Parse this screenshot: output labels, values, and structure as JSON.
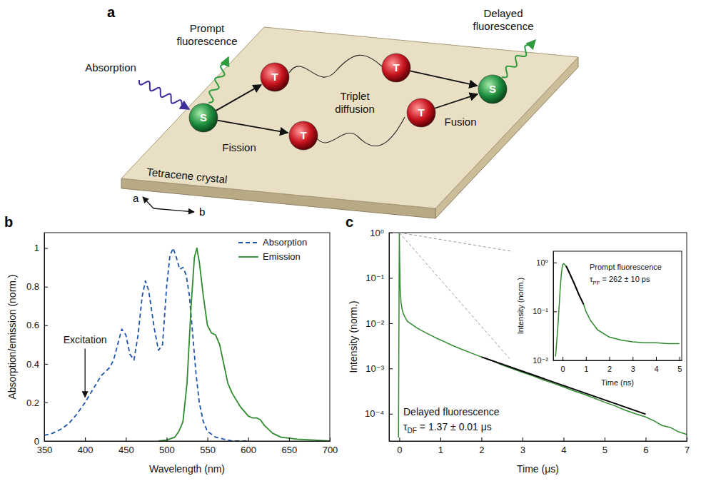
{
  "diagram": {
    "letter": "a",
    "crystal": "Tetracene crystal",
    "axes": [
      "a",
      "b"
    ],
    "nodes": [
      {
        "label": "S"
      },
      {
        "label": "T"
      },
      {
        "label": "T"
      },
      {
        "label": "T"
      },
      {
        "label": "T"
      },
      {
        "label": "S"
      }
    ],
    "labels": {
      "absorption": "Absorption",
      "prompt": "Prompt fluorescence",
      "fission": "Fission",
      "diffusion": "Triplet diffusion",
      "fusion": "Fusion",
      "delayed": "Delayed fluorescence"
    }
  },
  "chart_data": [
    {
      "type": "line",
      "letter": "b",
      "xlabel": "Wavelength (nm)",
      "ylabel": "Absorption/emission (norm.)",
      "xlim": [
        350,
        700
      ],
      "xticks": [
        350,
        400,
        450,
        500,
        550,
        600,
        650,
        700
      ],
      "ylim": [
        0,
        1.08
      ],
      "yticks": [
        0,
        0.2,
        0.4,
        0.6,
        0.8,
        1
      ],
      "legend": "upper right",
      "series": [
        {
          "name": "Absorption",
          "color": "#1f55a8",
          "line_style": "dashed",
          "x": [
            350,
            360,
            370,
            380,
            390,
            400,
            410,
            420,
            430,
            435,
            440,
            445,
            450,
            455,
            460,
            465,
            470,
            474,
            478,
            485,
            490,
            495,
            500,
            504,
            508,
            512,
            516,
            520,
            524,
            528,
            532,
            536,
            540,
            545,
            550,
            560,
            570,
            580,
            600
          ],
          "values": [
            0.03,
            0.04,
            0.06,
            0.09,
            0.14,
            0.2,
            0.27,
            0.34,
            0.38,
            0.42,
            0.5,
            0.58,
            0.55,
            0.45,
            0.42,
            0.55,
            0.75,
            0.83,
            0.78,
            0.58,
            0.47,
            0.5,
            0.8,
            0.96,
            1.0,
            0.95,
            0.89,
            0.9,
            0.86,
            0.75,
            0.55,
            0.35,
            0.2,
            0.1,
            0.05,
            0.02,
            0.01,
            0,
            0
          ]
        },
        {
          "name": "Emission",
          "color": "#2e8b2e",
          "line_style": "solid",
          "x": [
            490,
            500,
            510,
            515,
            520,
            525,
            530,
            534,
            537,
            540,
            545,
            550,
            555,
            560,
            565,
            570,
            575,
            580,
            590,
            600,
            605,
            610,
            615,
            620,
            630,
            640,
            660,
            680,
            700
          ],
          "values": [
            0,
            0.005,
            0.02,
            0.05,
            0.1,
            0.3,
            0.7,
            0.95,
            1.0,
            0.93,
            0.75,
            0.6,
            0.56,
            0.55,
            0.5,
            0.4,
            0.3,
            0.25,
            0.18,
            0.13,
            0.12,
            0.12,
            0.11,
            0.08,
            0.04,
            0.02,
            0.01,
            0.005,
            0
          ]
        }
      ],
      "annotations": [
        {
          "text": "Excitation",
          "x": 400,
          "y": 0.22
        }
      ]
    },
    {
      "type": "line",
      "letter": "c",
      "xlabel": "Time (μs)",
      "ylabel": "Intensity (norm.)",
      "log": "y",
      "xlim": [
        -0.25,
        7
      ],
      "xticks": [
        0,
        1,
        2,
        3,
        4,
        5,
        6,
        7
      ],
      "ylim": [
        2.5e-05,
        1
      ],
      "yticks": [
        {
          "value": 1,
          "label": "10⁰"
        },
        {
          "value": 0.1,
          "label": "10⁻¹"
        },
        {
          "value": 0.01,
          "label": "10⁻²"
        },
        {
          "value": 0.001,
          "label": "10⁻³"
        },
        {
          "value": 0.0001,
          "label": "10⁻⁴"
        }
      ],
      "series": [
        {
          "color": "#2e8b2e",
          "line_style": "solid",
          "x": [
            -0.02,
            0,
            0.01,
            0.02,
            0.04,
            0.07,
            0.1,
            0.15,
            0.2,
            0.3,
            0.4,
            0.5,
            0.7,
            0.9,
            1.1,
            1.3,
            1.5,
            1.75,
            2,
            2.25,
            2.5,
            2.75,
            3,
            3.25,
            3.5,
            3.75,
            4,
            4.25,
            4.5,
            4.75,
            5,
            5.25,
            5.5,
            5.75,
            6,
            6.2,
            6.4,
            6.6,
            6.8,
            7
          ],
          "values": [
            3e-05,
            1,
            0.2,
            0.06,
            0.03,
            0.02,
            0.016,
            0.013,
            0.011,
            0.0095,
            0.0082,
            0.0072,
            0.0058,
            0.0047,
            0.0039,
            0.0032,
            0.0027,
            0.0022,
            0.0018,
            0.0015,
            0.0012,
            0.00099,
            0.00082,
            0.00069,
            0.00056,
            0.00047,
            0.00039,
            0.00032,
            0.00027,
            0.00022,
            0.00018,
            0.00015,
            0.00012,
            0.0001,
            8.5e-05,
            7e-05,
            5.5e-05,
            5e-05,
            4e-05,
            3.5e-05
          ]
        },
        {
          "color": "#000000",
          "line_style": "solid",
          "x": [
            2,
            6
          ],
          "values": [
            0.0018,
            9.8e-05
          ]
        }
      ],
      "annotations": [
        {
          "text": "Delayed fluorescence",
          "symbol": "τ",
          "subscript": "DF",
          "rest": " = 1.37 ± 0.01 μs"
        }
      ]
    },
    {
      "type": "line",
      "xlabel": "Time (ns)",
      "ylabel": "Intensity (norm.)",
      "log": "y",
      "xlim": [
        -0.4,
        5.1
      ],
      "xticks": [
        0,
        1,
        2,
        3,
        4,
        5
      ],
      "ylim": [
        0.01,
        1.7
      ],
      "yticks": [
        {
          "value": 1,
          "label": "10⁰"
        },
        {
          "value": 0.1,
          "label": "10⁻¹"
        },
        {
          "value": 0.01,
          "label": "10⁻²"
        }
      ],
      "series": [
        {
          "color": "#2e8b2e",
          "line_style": "solid",
          "x": [
            -0.3,
            -0.2,
            -0.1,
            -0.05,
            0,
            0.05,
            0.1,
            0.2,
            0.3,
            0.5,
            0.7,
            0.9,
            1,
            1.2,
            1.5,
            2,
            2.5,
            3,
            3.5,
            4,
            4.5,
            5
          ],
          "values": [
            0.012,
            0.05,
            0.3,
            0.6,
            0.9,
            0.95,
            0.9,
            0.78,
            0.6,
            0.37,
            0.22,
            0.14,
            0.1,
            0.065,
            0.042,
            0.03,
            0.026,
            0.024,
            0.023,
            0.023,
            0.022,
            0.022
          ]
        },
        {
          "color": "#000000",
          "line_style": "solid",
          "x": [
            0.15,
            0.3,
            0.5,
            0.7,
            0.9
          ],
          "values": [
            0.85,
            0.6,
            0.37,
            0.22,
            0.14
          ]
        }
      ],
      "annotations": [
        {
          "text": "Prompt fluorescence",
          "symbol": "τ",
          "subscript": "PF",
          "rest": " = 262 ± 10 ps"
        }
      ]
    }
  ]
}
